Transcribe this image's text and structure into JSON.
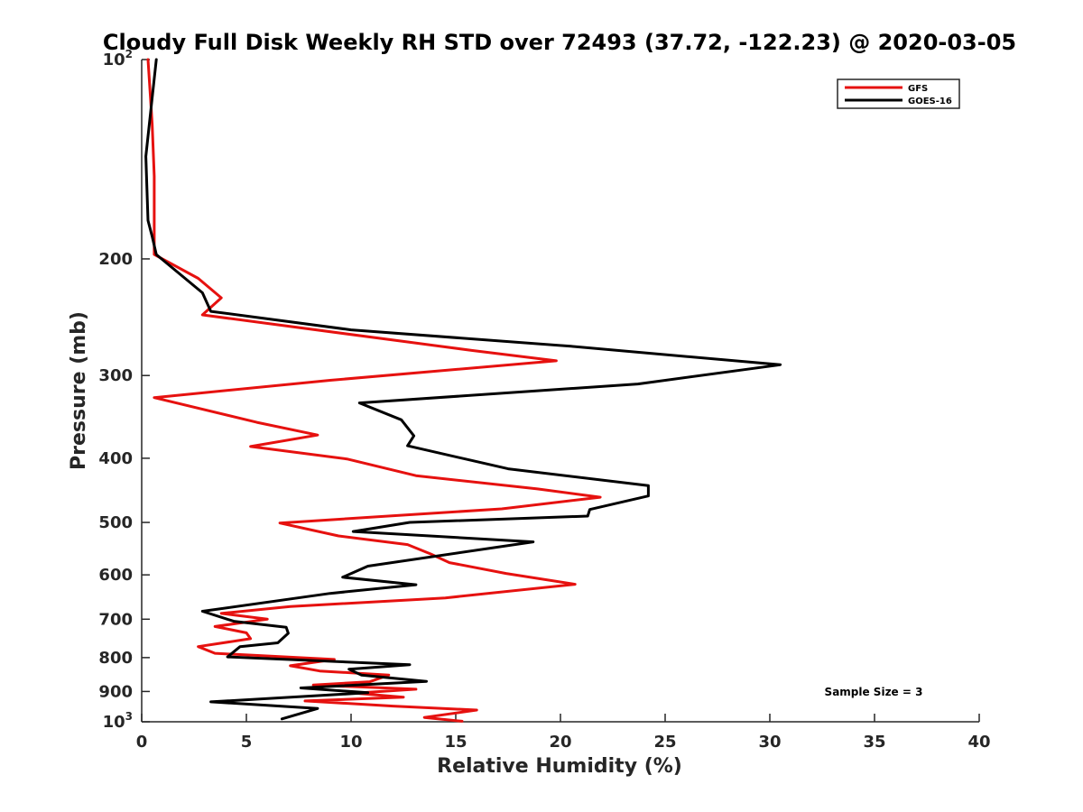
{
  "chart_data": {
    "type": "line",
    "title": "Cloudy Full Disk Weekly RH STD over 72493 (37.72, -122.23) @ 2020-03-05",
    "xlabel": "Relative Humidity (%)",
    "ylabel": "Pressure (mb)",
    "xlim": [
      0,
      40
    ],
    "ylim": [
      100,
      1000
    ],
    "y_scale": "log",
    "y_reversed": true,
    "grid": false,
    "legend_position": "top-right",
    "x_ticks": [
      "0",
      "5",
      "10",
      "15",
      "20",
      "25",
      "30",
      "35",
      "40"
    ],
    "y_ticks": [
      {
        "value": 100,
        "base": "10",
        "exp": "2"
      },
      {
        "value": 200,
        "label": "200"
      },
      {
        "value": 300,
        "label": "300"
      },
      {
        "value": 400,
        "label": "400"
      },
      {
        "value": 500,
        "label": "500"
      },
      {
        "value": 600,
        "label": "600"
      },
      {
        "value": 700,
        "label": "700"
      },
      {
        "value": 800,
        "label": "800"
      },
      {
        "value": 900,
        "label": "900"
      },
      {
        "value": 1000,
        "base": "10",
        "exp": "3"
      }
    ],
    "annotation": "Sample Size = 3",
    "series": [
      {
        "name": "GFS",
        "color": "#e6110f",
        "points": [
          [
            0.3,
            100
          ],
          [
            0.5,
            125
          ],
          [
            0.6,
            150
          ],
          [
            0.6,
            175
          ],
          [
            0.6,
            197
          ],
          [
            2.7,
            214
          ],
          [
            3.8,
            229
          ],
          [
            2.9,
            243
          ],
          [
            15.8,
            275
          ],
          [
            19.8,
            285
          ],
          [
            9.0,
            305
          ],
          [
            0.6,
            324
          ],
          [
            5.5,
            353
          ],
          [
            8.4,
            369
          ],
          [
            5.2,
            384
          ],
          [
            9.8,
            401
          ],
          [
            13.1,
            425
          ],
          [
            18.9,
            445
          ],
          [
            21.9,
            458
          ],
          [
            17.2,
            477
          ],
          [
            6.6,
            501
          ],
          [
            9.4,
            524
          ],
          [
            12.7,
            540
          ],
          [
            13.8,
            558
          ],
          [
            14.7,
            575
          ],
          [
            17.4,
            597
          ],
          [
            20.7,
            620
          ],
          [
            14.5,
            650
          ],
          [
            7.1,
            670
          ],
          [
            3.8,
            686
          ],
          [
            6.0,
            700
          ],
          [
            3.5,
            718
          ],
          [
            5.0,
            734
          ],
          [
            5.2,
            749
          ],
          [
            2.7,
            770
          ],
          [
            3.5,
            788
          ],
          [
            9.2,
            805
          ],
          [
            7.1,
            823
          ],
          [
            8.5,
            838
          ],
          [
            11.8,
            850
          ],
          [
            10.9,
            870
          ],
          [
            8.2,
            880
          ],
          [
            13.1,
            893
          ],
          [
            10.2,
            905
          ],
          [
            12.5,
            918
          ],
          [
            7.8,
            930
          ],
          [
            12.0,
            947
          ],
          [
            16.0,
            960
          ],
          [
            13.5,
            985
          ],
          [
            15.3,
            998
          ]
        ]
      },
      {
        "name": "GOES-16",
        "color": "#000000",
        "points": [
          [
            0.7,
            100
          ],
          [
            0.2,
            140
          ],
          [
            0.3,
            175
          ],
          [
            0.5,
            185
          ],
          [
            0.7,
            197
          ],
          [
            2.9,
            225
          ],
          [
            3.3,
            240
          ],
          [
            10.0,
            256
          ],
          [
            20.5,
            271
          ],
          [
            30.5,
            289
          ],
          [
            23.7,
            309
          ],
          [
            10.4,
            330
          ],
          [
            12.4,
            350
          ],
          [
            13.0,
            370
          ],
          [
            12.7,
            383
          ],
          [
            17.5,
            415
          ],
          [
            24.2,
            440
          ],
          [
            24.2,
            456
          ],
          [
            21.4,
            478
          ],
          [
            21.3,
            489
          ],
          [
            12.8,
            500
          ],
          [
            10.1,
            516
          ],
          [
            18.7,
            535
          ],
          [
            10.8,
            582
          ],
          [
            9.6,
            605
          ],
          [
            13.1,
            621
          ],
          [
            9.0,
            640
          ],
          [
            2.9,
            681
          ],
          [
            4.4,
            705
          ],
          [
            6.9,
            720
          ],
          [
            7.0,
            735
          ],
          [
            6.5,
            760
          ],
          [
            4.7,
            770
          ],
          [
            4.1,
            798
          ],
          [
            12.8,
            820
          ],
          [
            9.9,
            833
          ],
          [
            10.5,
            850
          ],
          [
            13.6,
            869
          ],
          [
            7.6,
            889
          ],
          [
            10.8,
            904
          ],
          [
            3.3,
            933
          ],
          [
            8.4,
            955
          ],
          [
            6.7,
            990
          ]
        ]
      }
    ]
  }
}
